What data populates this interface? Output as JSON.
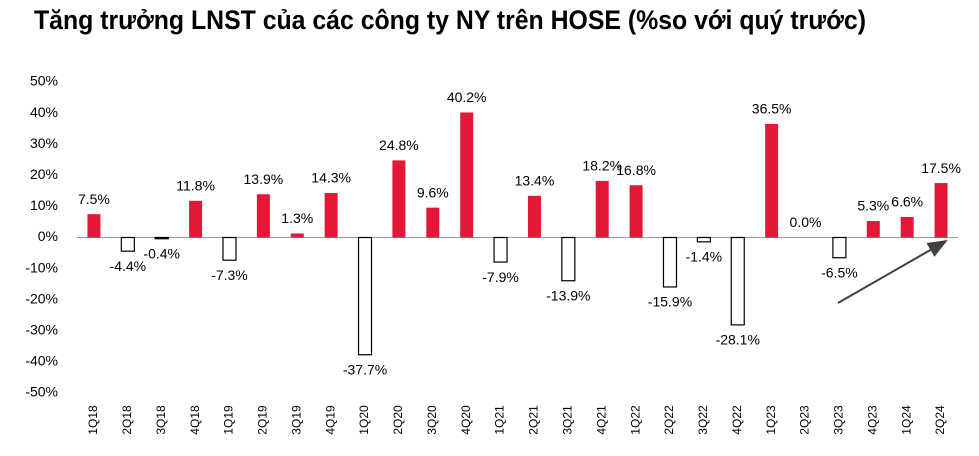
{
  "chart_data": {
    "type": "bar",
    "title": "Tăng trưởng LNST của các công ty NY trên HOSE (%so với quý trước)",
    "categories": [
      "1Q18",
      "2Q18",
      "3Q18",
      "4Q18",
      "1Q19",
      "2Q19",
      "3Q19",
      "4Q19",
      "1Q20",
      "2Q20",
      "3Q20",
      "4Q20",
      "1Q21",
      "2Q21",
      "3Q21",
      "4Q21",
      "1Q22",
      "2Q22",
      "3Q22",
      "4Q22",
      "1Q23",
      "2Q23",
      "3Q23",
      "4Q23",
      "1Q24",
      "2Q24"
    ],
    "values": [
      7.5,
      -4.4,
      -0.4,
      11.8,
      -7.3,
      13.9,
      1.3,
      14.3,
      -37.7,
      24.8,
      9.6,
      40.2,
      -7.9,
      13.4,
      -13.9,
      18.2,
      16.8,
      -15.9,
      -1.4,
      -28.1,
      36.5,
      0.0,
      -6.5,
      5.3,
      6.6,
      17.5
    ],
    "value_labels": [
      "7.5%",
      "-4.4%",
      "-0.4%",
      "11.8%",
      "-7.3%",
      "13.9%",
      "1.3%",
      "14.3%",
      "-37.7%",
      "24.8%",
      "9.6%",
      "40.2%",
      "-7.9%",
      "13.4%",
      "-13.9%",
      "18.2%",
      "16.8%",
      "-15.9%",
      "-1.4%",
      "-28.1%",
      "36.5%",
      "0.0%",
      "-6.5%",
      "5.3%",
      "6.6%",
      "17.5%"
    ],
    "positive_color": "#e31837",
    "negative_color": "#ffffff",
    "ylim": [
      -50,
      50
    ],
    "yticks": [
      {
        "value": 50,
        "label": "50%"
      },
      {
        "value": 40,
        "label": "40%"
      },
      {
        "value": 30,
        "label": "30%"
      },
      {
        "value": 20,
        "label": "20%"
      },
      {
        "value": 10,
        "label": "10%"
      },
      {
        "value": 0,
        "label": "0%"
      },
      {
        "value": -10,
        "label": "-10%"
      },
      {
        "value": -20,
        "label": "-20%"
      },
      {
        "value": -30,
        "label": "-30%"
      },
      {
        "value": -40,
        "label": "-40%"
      },
      {
        "value": -50,
        "label": "-50%"
      }
    ],
    "grid": false
  }
}
